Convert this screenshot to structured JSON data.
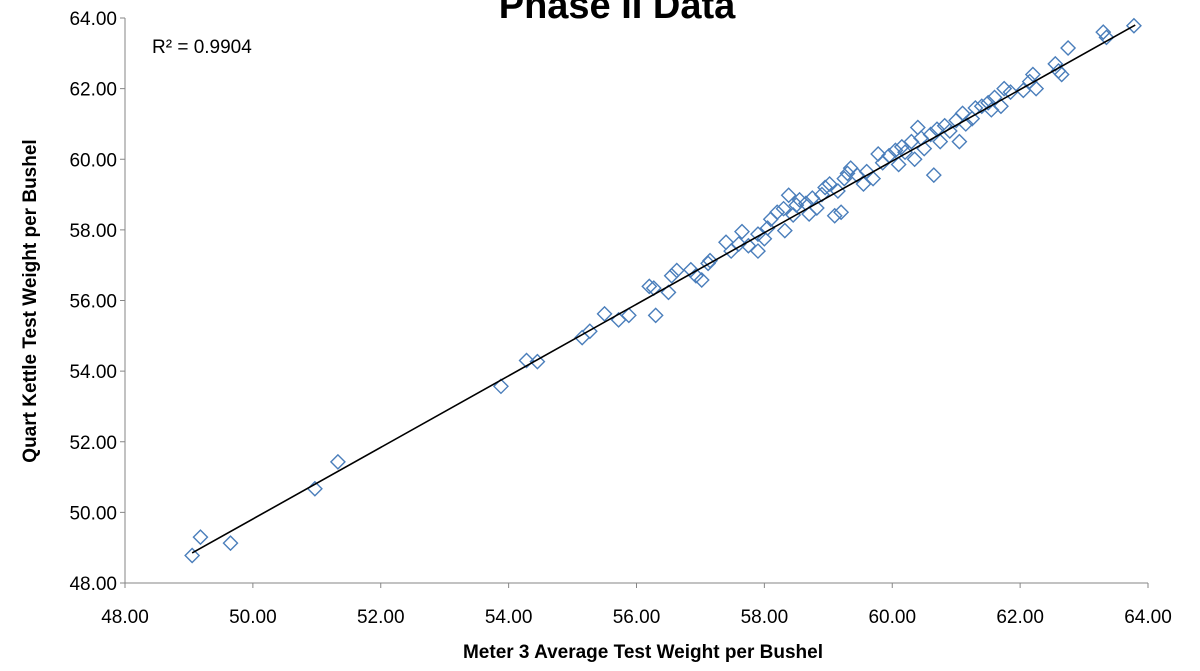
{
  "chart_data": {
    "type": "scatter",
    "title": "Phase II Data",
    "xlabel": "Meter 3 Average Test Weight per Bushel",
    "ylabel": "Quart Kettle Test Weight per Bushel",
    "xlim": [
      48,
      64
    ],
    "ylim": [
      48,
      64
    ],
    "x_ticks": [
      "48.00",
      "50.00",
      "52.00",
      "54.00",
      "56.00",
      "58.00",
      "60.00",
      "62.00",
      "64.00"
    ],
    "y_ticks": [
      "48.00",
      "50.00",
      "52.00",
      "54.00",
      "56.00",
      "58.00",
      "60.00",
      "62.00",
      "64.00"
    ],
    "grid": false,
    "legend": "none",
    "annotation": "R² = 0.9904",
    "trendline": {
      "type": "linear",
      "x": [
        49.05,
        63.8
      ],
      "y": [
        48.85,
        63.8
      ]
    },
    "marker_color": "#4a7ebb",
    "points": [
      [
        49.05,
        48.78
      ],
      [
        49.18,
        49.3
      ],
      [
        49.65,
        49.13
      ],
      [
        50.97,
        50.67
      ],
      [
        51.33,
        51.43
      ],
      [
        53.88,
        53.57
      ],
      [
        54.28,
        54.3
      ],
      [
        54.45,
        54.27
      ],
      [
        55.15,
        54.95
      ],
      [
        55.27,
        55.13
      ],
      [
        55.5,
        55.62
      ],
      [
        55.72,
        55.45
      ],
      [
        55.88,
        55.58
      ],
      [
        56.2,
        56.4
      ],
      [
        56.27,
        56.35
      ],
      [
        56.3,
        55.58
      ],
      [
        56.5,
        56.23
      ],
      [
        56.55,
        56.7
      ],
      [
        56.63,
        56.85
      ],
      [
        56.85,
        56.87
      ],
      [
        56.93,
        56.7
      ],
      [
        57.02,
        56.58
      ],
      [
        57.12,
        57.05
      ],
      [
        57.15,
        57.13
      ],
      [
        57.4,
        57.65
      ],
      [
        57.48,
        57.4
      ],
      [
        57.6,
        57.6
      ],
      [
        57.65,
        57.95
      ],
      [
        57.75,
        57.55
      ],
      [
        57.9,
        57.88
      ],
      [
        57.9,
        57.4
      ],
      [
        58.0,
        57.75
      ],
      [
        58.05,
        58.05
      ],
      [
        58.1,
        58.3
      ],
      [
        58.2,
        58.5
      ],
      [
        58.3,
        58.6
      ],
      [
        58.32,
        57.98
      ],
      [
        58.38,
        58.98
      ],
      [
        58.45,
        58.42
      ],
      [
        58.5,
        58.7
      ],
      [
        58.55,
        58.85
      ],
      [
        58.65,
        58.75
      ],
      [
        58.7,
        58.45
      ],
      [
        58.75,
        58.9
      ],
      [
        58.82,
        58.62
      ],
      [
        58.9,
        59.0
      ],
      [
        58.95,
        59.2
      ],
      [
        59.02,
        59.3
      ],
      [
        59.1,
        58.4
      ],
      [
        59.15,
        59.1
      ],
      [
        59.2,
        58.5
      ],
      [
        59.25,
        59.45
      ],
      [
        59.3,
        59.6
      ],
      [
        59.35,
        59.75
      ],
      [
        59.45,
        59.55
      ],
      [
        59.55,
        59.3
      ],
      [
        59.6,
        59.65
      ],
      [
        59.7,
        59.45
      ],
      [
        59.78,
        60.15
      ],
      [
        59.85,
        59.9
      ],
      [
        59.95,
        60.1
      ],
      [
        60.05,
        60.25
      ],
      [
        60.1,
        59.85
      ],
      [
        60.15,
        60.35
      ],
      [
        60.2,
        60.2
      ],
      [
        60.3,
        60.5
      ],
      [
        60.35,
        60.0
      ],
      [
        60.4,
        60.9
      ],
      [
        60.45,
        60.6
      ],
      [
        60.5,
        60.3
      ],
      [
        60.6,
        60.7
      ],
      [
        60.65,
        59.55
      ],
      [
        60.7,
        60.85
      ],
      [
        60.75,
        60.5
      ],
      [
        60.82,
        60.95
      ],
      [
        60.9,
        60.8
      ],
      [
        61.0,
        61.1
      ],
      [
        61.05,
        60.5
      ],
      [
        61.1,
        61.3
      ],
      [
        61.15,
        61.0
      ],
      [
        61.25,
        61.15
      ],
      [
        61.3,
        61.45
      ],
      [
        61.4,
        61.5
      ],
      [
        61.5,
        61.6
      ],
      [
        61.55,
        61.4
      ],
      [
        61.6,
        61.75
      ],
      [
        61.7,
        61.5
      ],
      [
        61.75,
        62.0
      ],
      [
        61.85,
        61.9
      ],
      [
        62.05,
        61.95
      ],
      [
        62.15,
        62.2
      ],
      [
        62.2,
        62.4
      ],
      [
        62.25,
        62.0
      ],
      [
        62.55,
        62.7
      ],
      [
        62.6,
        62.5
      ],
      [
        62.65,
        62.4
      ],
      [
        62.75,
        63.15
      ],
      [
        63.3,
        63.6
      ],
      [
        63.35,
        63.45
      ],
      [
        63.78,
        63.78
      ]
    ]
  }
}
